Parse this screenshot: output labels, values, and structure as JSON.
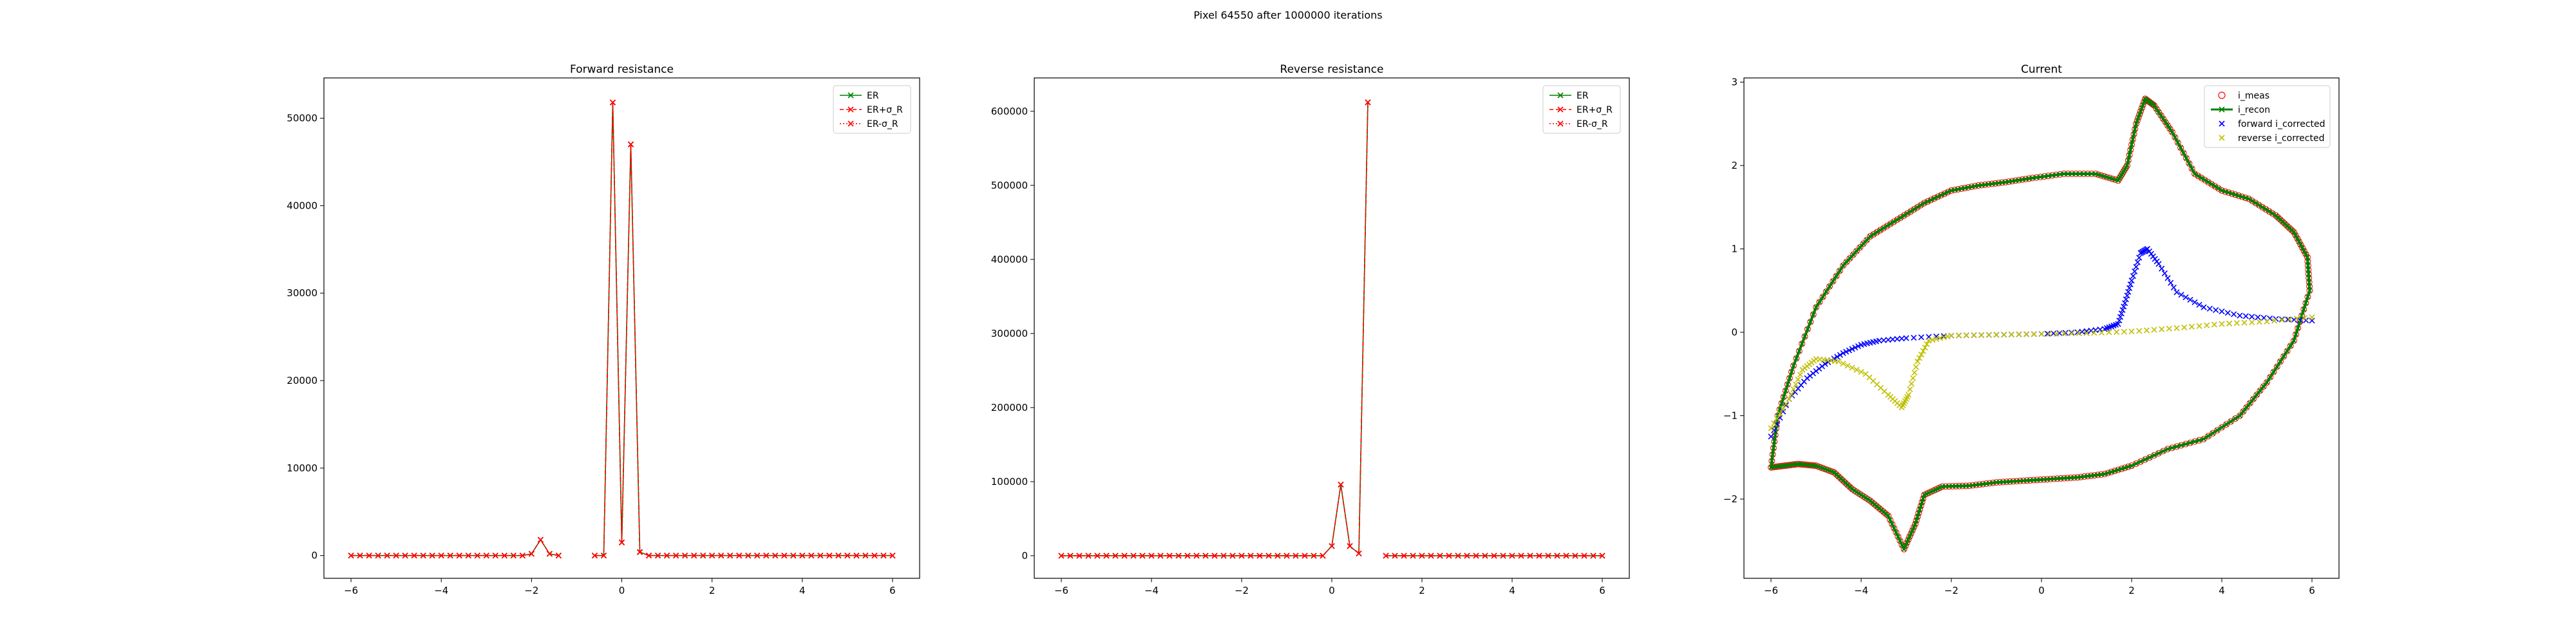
{
  "figure": {
    "suptitle": "Pixel 64550 after 1000000 iterations"
  },
  "colors": {
    "er": "#008000",
    "er_band": "#ff0000",
    "forward": "#0000ff",
    "reverse": "#bfbf00"
  },
  "chart_data": [
    {
      "type": "line",
      "title": "Forward resistance",
      "xlabel": "",
      "ylabel": "",
      "xlim": [
        -6.6,
        6.6
      ],
      "ylim": [
        -2600,
        54600
      ],
      "xticks": [
        -6,
        -4,
        -2,
        0,
        2,
        4,
        6
      ],
      "xtick_labels": [
        "−6",
        "−4",
        "−2",
        "0",
        "2",
        "4",
        "6"
      ],
      "yticks": [
        0,
        10000,
        20000,
        30000,
        40000,
        50000
      ],
      "ytick_labels": [
        "0",
        "10000",
        "20000",
        "30000",
        "40000",
        "50000"
      ],
      "legend": {
        "placement": "top-right",
        "entries": [
          "ER",
          "ER+σ_R",
          "ER-σ_R"
        ]
      },
      "x_sample": {
        "start": -6,
        "end": 6,
        "step": 0.2
      },
      "series": [
        {
          "name": "ER",
          "color": "#008000",
          "marker": "x",
          "linestyle": "solid",
          "nonzero": {
            "-2.0": 200,
            "-1.8": 1800,
            "-1.6": 200,
            "-0.2": 51800,
            "0.0": 1500,
            "0.2": 47000,
            "0.4": 400
          },
          "gaps": [
            -1.2,
            -1.0,
            -0.8
          ]
        },
        {
          "name": "ER+σ_R",
          "color": "#ff0000",
          "marker": "x",
          "linestyle": "dashed",
          "nonzero": {
            "-2.0": 200,
            "-1.8": 1800,
            "-1.6": 200,
            "-0.2": 51800,
            "0.0": 1500,
            "0.2": 47000,
            "0.4": 400
          },
          "gaps": [
            -1.2,
            -1.0,
            -0.8
          ]
        },
        {
          "name": "ER-σ_R",
          "color": "#ff0000",
          "marker": "x",
          "linestyle": "dotted",
          "nonzero": {
            "-2.0": 200,
            "-1.8": 1800,
            "-1.6": 200,
            "-0.2": 51800,
            "0.0": 1500,
            "0.2": 47000,
            "0.4": 400
          },
          "gaps": [
            -1.2,
            -1.0,
            -0.8
          ]
        }
      ]
    },
    {
      "type": "line",
      "title": "Reverse resistance",
      "xlabel": "",
      "ylabel": "",
      "xlim": [
        -6.6,
        6.6
      ],
      "ylim": [
        -30500,
        645000
      ],
      "xticks": [
        -6,
        -4,
        -2,
        0,
        2,
        4,
        6
      ],
      "xtick_labels": [
        "−6",
        "−4",
        "−2",
        "0",
        "2",
        "4",
        "6"
      ],
      "yticks": [
        0,
        100000,
        200000,
        300000,
        400000,
        500000,
        600000
      ],
      "ytick_labels": [
        "0",
        "100000",
        "200000",
        "300000",
        "400000",
        "500000",
        "600000"
      ],
      "legend": {
        "placement": "top-right",
        "entries": [
          "ER",
          "ER+σ_R",
          "ER-σ_R"
        ]
      },
      "x_sample": {
        "start": -6,
        "end": 6,
        "step": 0.2
      },
      "series": [
        {
          "name": "ER",
          "color": "#008000",
          "marker": "x",
          "linestyle": "solid",
          "nonzero": {
            "0.0": 13000,
            "0.2": 96000,
            "0.4": 13000,
            "0.6": 3000,
            "0.8": 612000
          },
          "gaps": [
            1.0
          ]
        },
        {
          "name": "ER+σ_R",
          "color": "#ff0000",
          "marker": "x",
          "linestyle": "dashed",
          "nonzero": {
            "0.0": 13000,
            "0.2": 96000,
            "0.4": 13000,
            "0.6": 3000,
            "0.8": 612000
          },
          "gaps": [
            1.0
          ]
        },
        {
          "name": "ER-σ_R",
          "color": "#ff0000",
          "marker": "x",
          "linestyle": "dotted",
          "nonzero": {
            "0.0": 13000,
            "0.2": 96000,
            "0.4": 13000,
            "0.6": 3000,
            "0.8": 612000
          },
          "gaps": [
            1.0
          ]
        }
      ]
    },
    {
      "type": "scatter",
      "title": "Current",
      "xlabel": "",
      "ylabel": "",
      "xlim": [
        -6.6,
        6.6
      ],
      "ylim": [
        -2.95,
        3.05
      ],
      "xticks": [
        -6,
        -4,
        -2,
        0,
        2,
        4,
        6
      ],
      "xtick_labels": [
        "−6",
        "−4",
        "−2",
        "0",
        "2",
        "4",
        "6"
      ],
      "yticks": [
        -2,
        -1,
        0,
        1,
        2,
        3
      ],
      "ytick_labels": [
        "−2",
        "−1",
        "0",
        "1",
        "2",
        "3"
      ],
      "legend": {
        "placement": "top-right",
        "entries": [
          "i_meas",
          "i_recon",
          "forward i_corrected",
          "reverse i_corrected"
        ]
      },
      "series": [
        {
          "name": "i_meas",
          "color": "#ff0000",
          "marker": "o-hollow",
          "loop": [
            [
              -6.0,
              -1.62
            ],
            [
              -5.7,
              -1.6
            ],
            [
              -5.4,
              -1.58
            ],
            [
              -5.0,
              -1.6
            ],
            [
              -4.6,
              -1.68
            ],
            [
              -4.2,
              -1.88
            ],
            [
              -3.8,
              -2.02
            ],
            [
              -3.4,
              -2.2
            ],
            [
              -3.05,
              -2.6
            ],
            [
              -2.8,
              -2.3
            ],
            [
              -2.6,
              -1.95
            ],
            [
              -2.2,
              -1.85
            ],
            [
              -1.6,
              -1.84
            ],
            [
              -1.0,
              -1.8
            ],
            [
              -0.4,
              -1.78
            ],
            [
              0.2,
              -1.76
            ],
            [
              0.8,
              -1.74
            ],
            [
              1.4,
              -1.7
            ],
            [
              2.0,
              -1.6
            ],
            [
              2.8,
              -1.4
            ],
            [
              3.6,
              -1.28
            ],
            [
              4.4,
              -1.0
            ],
            [
              5.0,
              -0.6
            ],
            [
              5.6,
              -0.1
            ],
            [
              5.95,
              0.5
            ],
            [
              5.9,
              0.9
            ],
            [
              5.6,
              1.2
            ],
            [
              5.2,
              1.4
            ],
            [
              4.6,
              1.6
            ],
            [
              4.0,
              1.7
            ],
            [
              3.4,
              1.9
            ],
            [
              2.9,
              2.4
            ],
            [
              2.5,
              2.72
            ],
            [
              2.3,
              2.8
            ],
            [
              2.1,
              2.5
            ],
            [
              1.9,
              2.0
            ],
            [
              1.7,
              1.82
            ],
            [
              1.2,
              1.9
            ],
            [
              0.5,
              1.9
            ],
            [
              -0.2,
              1.85
            ],
            [
              -0.8,
              1.8
            ],
            [
              -1.4,
              1.76
            ],
            [
              -2.0,
              1.7
            ],
            [
              -2.6,
              1.55
            ],
            [
              -3.2,
              1.35
            ],
            [
              -3.8,
              1.15
            ],
            [
              -4.4,
              0.8
            ],
            [
              -5.0,
              0.3
            ],
            [
              -5.5,
              -0.4
            ],
            [
              -5.85,
              -1.0
            ],
            [
              -6.0,
              -1.62
            ]
          ]
        },
        {
          "name": "i_recon",
          "color": "#008000",
          "marker": "x-line",
          "same_as": "i_meas"
        },
        {
          "name": "forward i_corrected",
          "color": "#0000ff",
          "marker": "x",
          "path": [
            [
              -6.0,
              -1.25
            ],
            [
              -5.6,
              -0.8
            ],
            [
              -5.2,
              -0.55
            ],
            [
              -4.8,
              -0.38
            ],
            [
              -4.4,
              -0.25
            ],
            [
              -4.0,
              -0.15
            ],
            [
              -3.6,
              -0.1
            ],
            [
              -3.0,
              -0.07
            ],
            [
              -2.0,
              -0.04
            ],
            [
              -1.0,
              -0.03
            ],
            [
              0.0,
              -0.02
            ],
            [
              0.8,
              0.0
            ],
            [
              1.4,
              0.04
            ],
            [
              1.7,
              0.1
            ],
            [
              1.85,
              0.35
            ],
            [
              2.0,
              0.62
            ],
            [
              2.2,
              0.95
            ],
            [
              2.35,
              1.0
            ],
            [
              2.6,
              0.82
            ],
            [
              3.0,
              0.48
            ],
            [
              3.6,
              0.3
            ],
            [
              4.4,
              0.2
            ],
            [
              5.2,
              0.16
            ],
            [
              6.0,
              0.14
            ]
          ]
        },
        {
          "name": "reverse i_corrected",
          "color": "#bfbf00",
          "marker": "x",
          "path": [
            [
              6.0,
              0.18
            ],
            [
              5.0,
              0.13
            ],
            [
              4.0,
              0.1
            ],
            [
              3.0,
              0.05
            ],
            [
              2.0,
              0.01
            ],
            [
              1.0,
              -0.01
            ],
            [
              0.0,
              -0.02
            ],
            [
              -1.0,
              -0.03
            ],
            [
              -2.0,
              -0.04
            ],
            [
              -2.5,
              -0.1
            ],
            [
              -2.75,
              -0.35
            ],
            [
              -2.95,
              -0.75
            ],
            [
              -3.1,
              -0.9
            ],
            [
              -3.4,
              -0.75
            ],
            [
              -3.9,
              -0.5
            ],
            [
              -4.5,
              -0.35
            ],
            [
              -5.0,
              -0.32
            ],
            [
              -5.3,
              -0.45
            ],
            [
              -5.6,
              -0.8
            ],
            [
              -6.0,
              -1.15
            ]
          ]
        }
      ]
    }
  ]
}
